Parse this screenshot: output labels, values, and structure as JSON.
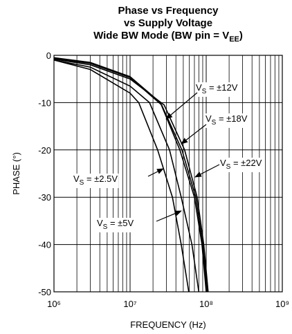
{
  "chart_data": {
    "type": "line",
    "title": [
      "Phase vs Frequency",
      "vs Supply Voltage",
      [
        "Wide BW Mode (BW pin = V",
        "EE",
        ")"
      ]
    ],
    "xlabel": "FREQUENCY (Hz)",
    "ylabel": "PHASE (°)",
    "xscale": "log",
    "xlim": [
      1000000,
      1000000000
    ],
    "xticks": [
      {
        "value": 1000000,
        "label": "10⁶"
      },
      {
        "value": 10000000,
        "label": "10⁷"
      },
      {
        "value": 100000000,
        "label": "10⁸"
      },
      {
        "value": 1000000000,
        "label": "10⁹"
      }
    ],
    "ylim": [
      -50,
      0
    ],
    "yticks": [
      0,
      -10,
      -20,
      -30,
      -40,
      -50
    ],
    "grid": true,
    "series": [
      {
        "color": "#000000",
        "x": [
          1000000,
          3000000,
          10000000,
          13000000,
          23000000,
          36000000,
          47000000,
          59000000
        ],
        "values": [
          -1,
          -3,
          -8,
          -10,
          -20,
          -30,
          -40,
          -50
        ]
      },
      {
        "color": "#000000",
        "x": [
          1000000,
          3000000,
          10000000,
          18000000,
          33000000,
          47000000,
          65000000,
          80000000
        ],
        "values": [
          -1,
          -2.5,
          -6.5,
          -10,
          -20,
          -30,
          -40,
          -50
        ]
      },
      {
        "color": "#000000",
        "x": [
          1000000,
          3000000,
          10000000,
          25000000,
          45000000,
          70000000,
          88000000,
          100000000
        ],
        "values": [
          -0.5,
          -1.5,
          -4.5,
          -10,
          -20,
          -30,
          -40,
          -50
        ]
      },
      {
        "color": "#000000",
        "x": [
          1000000,
          3000000,
          10000000,
          26000000,
          48000000,
          73000000,
          90000000,
          103000000
        ],
        "values": [
          -0.7,
          -1.7,
          -4.7,
          -10.5,
          -20,
          -30,
          -40,
          -50
        ]
      },
      {
        "color": "#000000",
        "x": [
          1000000,
          3000000,
          10000000,
          28000000,
          52000000,
          76000000,
          93000000,
          106000000
        ],
        "values": [
          -0.8,
          -2,
          -5,
          -10.5,
          -20,
          -30,
          -40,
          -50
        ]
      }
    ],
    "annotations": [
      {
        "text": [
          "V",
          "S",
          " = ±12V"
        ]
      },
      {
        "text": [
          "V",
          "S",
          " = ±18V"
        ]
      },
      {
        "text": [
          "V",
          "S",
          " = ±22V"
        ]
      },
      {
        "text": [
          "V",
          "S",
          " = ±2.5V"
        ]
      },
      {
        "text": [
          "V",
          "S",
          " = ±5V"
        ]
      }
    ]
  }
}
